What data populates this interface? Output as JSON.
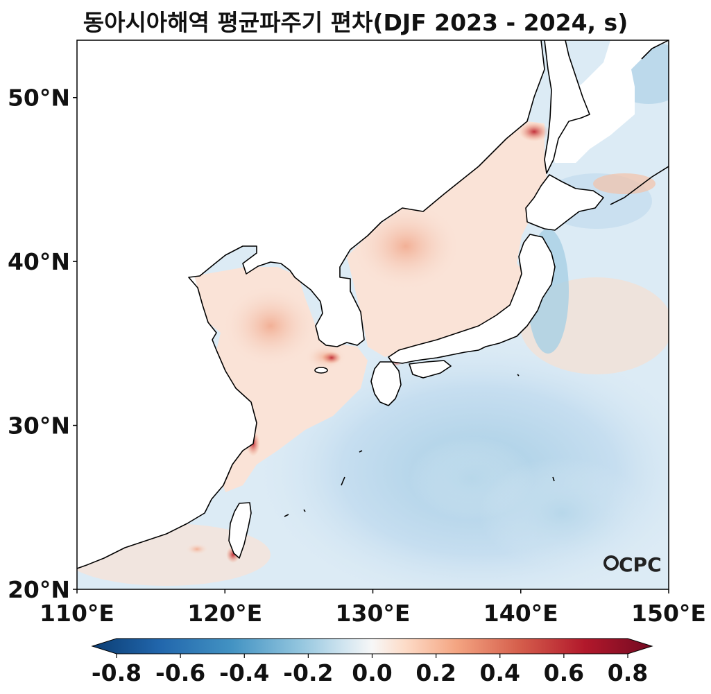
{
  "title": "동아시아해역 평균파주기 편차(DJF 2023 - 2024, s)",
  "map": {
    "lon_range": [
      110,
      150
    ],
    "lat_range": [
      20,
      53.5
    ],
    "lon_ticks": [
      "110°E",
      "120°E",
      "130°E",
      "140°E",
      "150°E"
    ],
    "lat_ticks": [
      "20°N",
      "30°N",
      "40°N",
      "50°N"
    ]
  },
  "colorbar": {
    "min": -0.8,
    "max": 0.8,
    "extend": "both",
    "cmap": "RdBu_r",
    "ticks": [
      "-0.8",
      "-0.6",
      "-0.4",
      "-0.2",
      "0.0",
      "0.2",
      "0.4",
      "0.6",
      "0.8"
    ],
    "colors": [
      "#053061",
      "#2166ac",
      "#4393c3",
      "#92c5de",
      "#d1e5f0",
      "#f7f7f7",
      "#fddbc7",
      "#f4a582",
      "#d6604d",
      "#b2182b",
      "#67001f"
    ]
  },
  "logo": "OCPC"
}
